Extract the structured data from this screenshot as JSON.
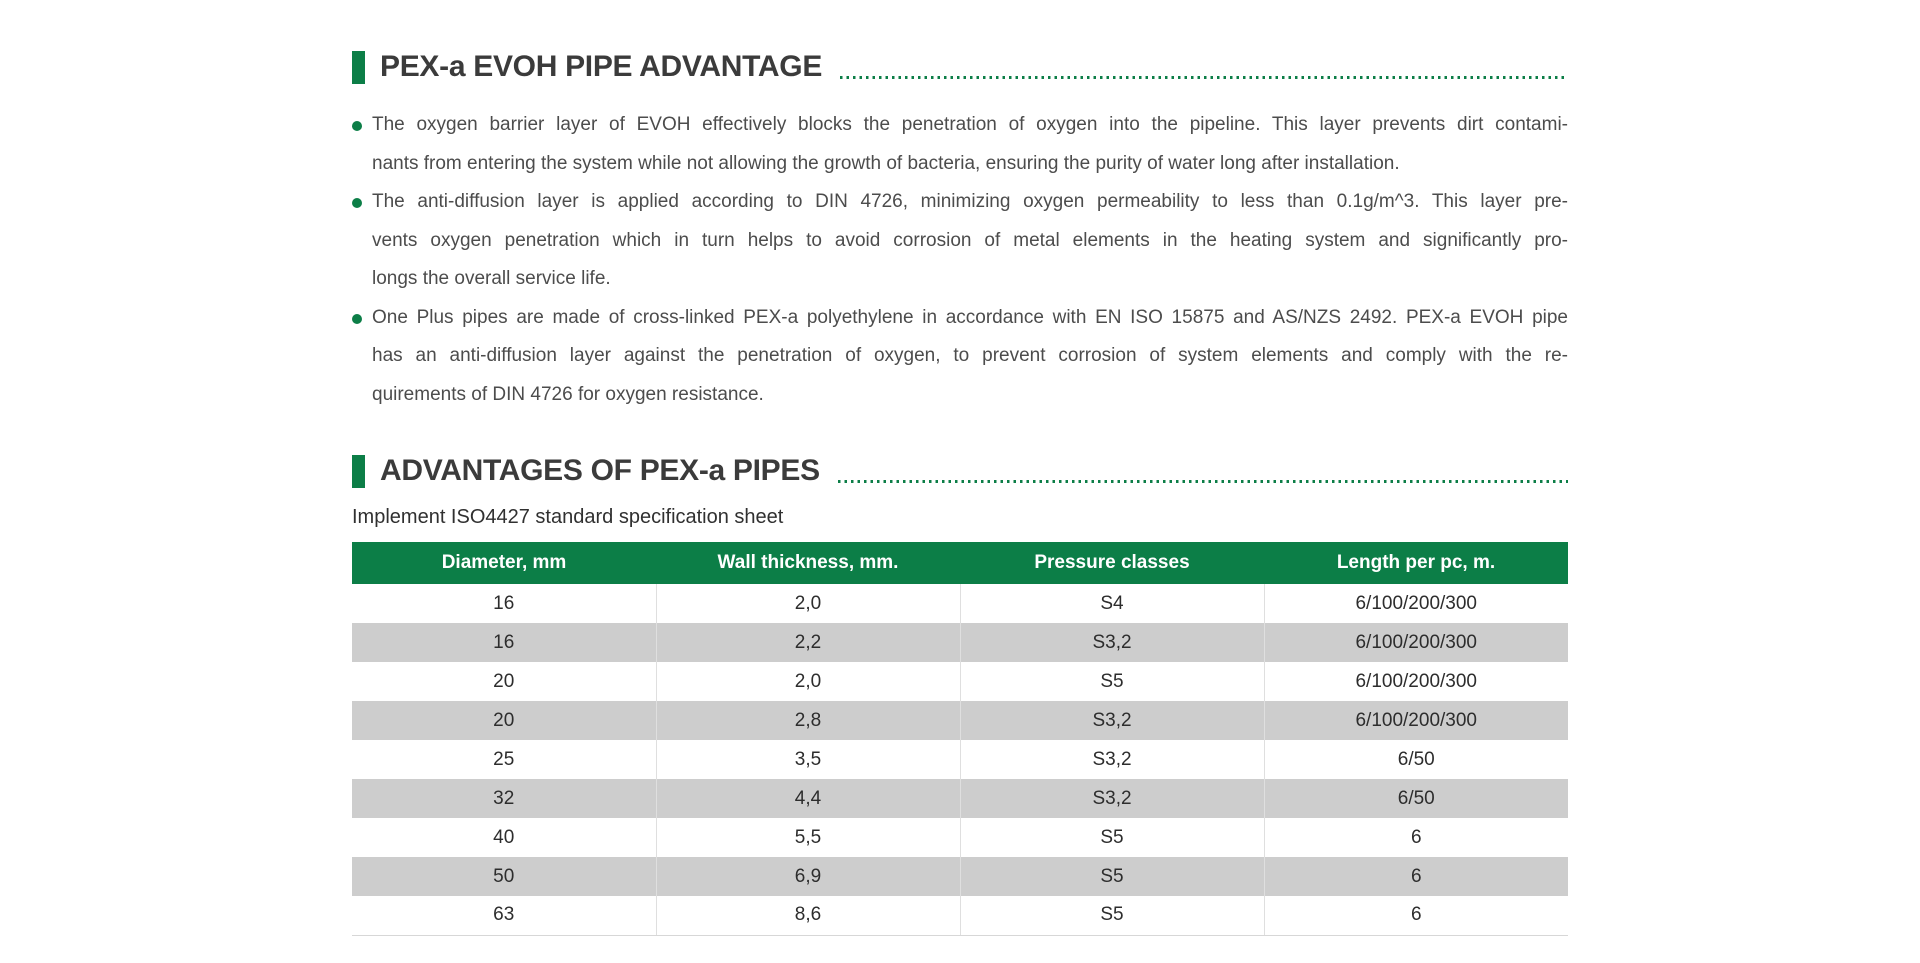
{
  "colors": {
    "accent_green": "#0c7e47",
    "table_row_alt_gray": "#cdcdcd",
    "heading_text": "#3b3b3b",
    "body_text": "#4c4c4c"
  },
  "section_pipe_advantage": {
    "title": "PEX-a EVOH PIPE ADVANTAGE",
    "bullets": [
      {
        "lines": [
          "The oxygen barrier layer of EVOH effectively blocks the penetration of oxygen into the pipeline. This layer prevents dirt contami-",
          "nants from entering the system while not allowing the growth of bacteria, ensuring the purity of water long after installation."
        ]
      },
      {
        "lines": [
          "The anti-diffusion layer is applied according to DIN 4726, minimizing oxygen permeability to less than 0.1g/m^3. This layer pre-",
          "vents oxygen penetration which in turn helps to avoid corrosion of metal elements in the heating system and significantly pro-",
          "longs the overall service life."
        ]
      },
      {
        "lines": [
          "One Plus pipes are made of cross-linked PEX-a polyethylene in accordance with EN ISO 15875 and AS/NZS 2492. PEX-a EVOH pipe",
          "has an anti-diffusion layer against the penetration of oxygen, to prevent corrosion of system elements and comply with the re-",
          "quirements of DIN 4726 for oxygen resistance."
        ]
      }
    ]
  },
  "section_advantages": {
    "title": "ADVANTAGES OF PEX-a PIPES",
    "subtitle": "Implement ISO4427 standard specification sheet",
    "table": {
      "columns": [
        "Diameter, mm",
        "Wall thickness, mm.",
        "Pressure classes",
        "Length per pc, m."
      ],
      "rows": [
        [
          "16",
          "2,0",
          "S4",
          "6/100/200/300"
        ],
        [
          "16",
          "2,2",
          "S3,2",
          "6/100/200/300"
        ],
        [
          "20",
          "2,0",
          "S5",
          "6/100/200/300"
        ],
        [
          "20",
          "2,8",
          "S3,2",
          "6/100/200/300"
        ],
        [
          "25",
          "3,5",
          "S3,2",
          "6/50"
        ],
        [
          "32",
          "4,4",
          "S3,2",
          "6/50"
        ],
        [
          "40",
          "5,5",
          "S5",
          "6"
        ],
        [
          "50",
          "6,9",
          "S5",
          "6"
        ],
        [
          "63",
          "8,6",
          "S5",
          "6"
        ]
      ]
    }
  }
}
